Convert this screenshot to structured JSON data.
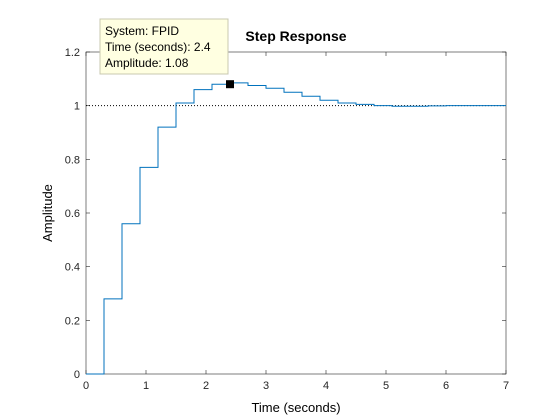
{
  "chart_data": {
    "type": "line",
    "style": "stairs",
    "title": "Step Response",
    "xlabel": "Time (seconds)",
    "ylabel": "Amplitude",
    "xlim": [
      0,
      7
    ],
    "ylim": [
      0,
      1.2
    ],
    "x_ticks": [
      "0",
      "1",
      "2",
      "3",
      "4",
      "5",
      "6",
      "7"
    ],
    "y_ticks": [
      "0",
      "0.2",
      "0.4",
      "0.6",
      "0.8",
      "1",
      "1.2"
    ],
    "x_tick_values": [
      0,
      1,
      2,
      3,
      4,
      5,
      6,
      7
    ],
    "y_tick_values": [
      0,
      0.2,
      0.4,
      0.6,
      0.8,
      1,
      1.2
    ],
    "grid": false,
    "reference_line": {
      "y": 1.0,
      "style": "dotted"
    },
    "series": [
      {
        "color": "#0072bd",
        "x": [
          0,
          0.3,
          0.6,
          0.9,
          1.2,
          1.5,
          1.8,
          2.1,
          2.4,
          2.7,
          3.0,
          3.3,
          3.6,
          3.9,
          4.2,
          4.5,
          4.8,
          5.1,
          5.4,
          5.7,
          6.0,
          6.3,
          6.6,
          6.9
        ],
        "y": [
          0,
          0.28,
          0.56,
          0.77,
          0.92,
          1.01,
          1.06,
          1.08,
          1.085,
          1.075,
          1.065,
          1.05,
          1.035,
          1.02,
          1.01,
          1.005,
          1.0,
          0.998,
          0.998,
          0.999,
          1.0,
          1.0,
          1.0,
          1.0
        ]
      }
    ],
    "datatip": {
      "x": 2.4,
      "y": 1.08,
      "line1": "System: FPID",
      "line2": "Time (seconds): 2.4",
      "line3": "Amplitude: 1.08"
    }
  }
}
